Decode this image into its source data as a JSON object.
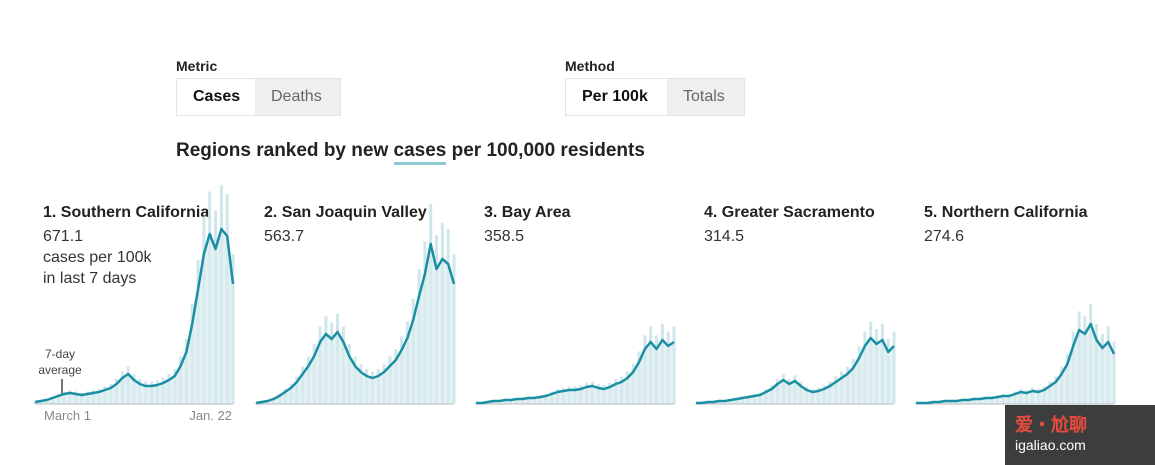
{
  "controls": {
    "metric": {
      "label": "Metric",
      "options": [
        "Cases",
        "Deaths"
      ],
      "active": "Cases"
    },
    "method": {
      "label": "Method",
      "options": [
        "Per 100k",
        "Totals"
      ],
      "active": "Per 100k"
    }
  },
  "heading": {
    "before": "Regions ranked by new ",
    "highlight": "cases",
    "after": " per 100,000 residents"
  },
  "first_panel_note": {
    "line1": "cases per 100k",
    "line2": "in last 7 days"
  },
  "annotation": {
    "line1": "7-day",
    "line2": "average"
  },
  "x_axis": {
    "start": "March 1",
    "end": "Jan. 22"
  },
  "colors": {
    "line": "#1a8fa3",
    "bars": "#cfe6ea",
    "highlight": "#8fc9d2"
  },
  "watermark": {
    "brand": "爱・尬聊",
    "url": "igaliao.com"
  },
  "chart_data": [
    {
      "type": "area",
      "title": "1. Southern California",
      "value": "671.1",
      "values": [
        2,
        3,
        4,
        6,
        8,
        10,
        11,
        10,
        9,
        10,
        11,
        12,
        14,
        16,
        20,
        26,
        30,
        24,
        20,
        18,
        18,
        19,
        21,
        24,
        28,
        38,
        52,
        80,
        115,
        150,
        170,
        155,
        175,
        168,
        120
      ]
    },
    {
      "type": "area",
      "title": "2. San Joaquin Valley",
      "value": "563.7",
      "values": [
        1,
        2,
        3,
        5,
        8,
        12,
        16,
        22,
        30,
        38,
        48,
        62,
        70,
        65,
        72,
        62,
        48,
        38,
        32,
        28,
        26,
        28,
        32,
        38,
        44,
        54,
        66,
        84,
        108,
        130,
        160,
        135,
        145,
        140,
        120
      ]
    },
    {
      "type": "area",
      "title": "3. Bay Area",
      "value": "358.5",
      "values": [
        1,
        1,
        2,
        3,
        3,
        4,
        4,
        5,
        5,
        6,
        6,
        7,
        8,
        10,
        12,
        13,
        14,
        14,
        15,
        17,
        18,
        16,
        15,
        17,
        20,
        22,
        26,
        32,
        42,
        55,
        62,
        55,
        64,
        58,
        62
      ]
    },
    {
      "type": "area",
      "title": "4. Greater Sacramento",
      "value": "314.5",
      "values": [
        1,
        1,
        2,
        2,
        3,
        3,
        4,
        5,
        6,
        7,
        8,
        9,
        12,
        15,
        20,
        24,
        20,
        23,
        18,
        14,
        12,
        13,
        15,
        18,
        22,
        26,
        30,
        36,
        46,
        58,
        66,
        60,
        64,
        52,
        58
      ]
    },
    {
      "type": "area",
      "title": "5. Northern California",
      "value": "274.6",
      "values": [
        1,
        1,
        1,
        2,
        2,
        3,
        3,
        3,
        4,
        4,
        5,
        5,
        6,
        6,
        7,
        8,
        8,
        10,
        12,
        11,
        13,
        12,
        14,
        18,
        22,
        30,
        40,
        58,
        74,
        70,
        80,
        64,
        56,
        62,
        50
      ]
    }
  ]
}
